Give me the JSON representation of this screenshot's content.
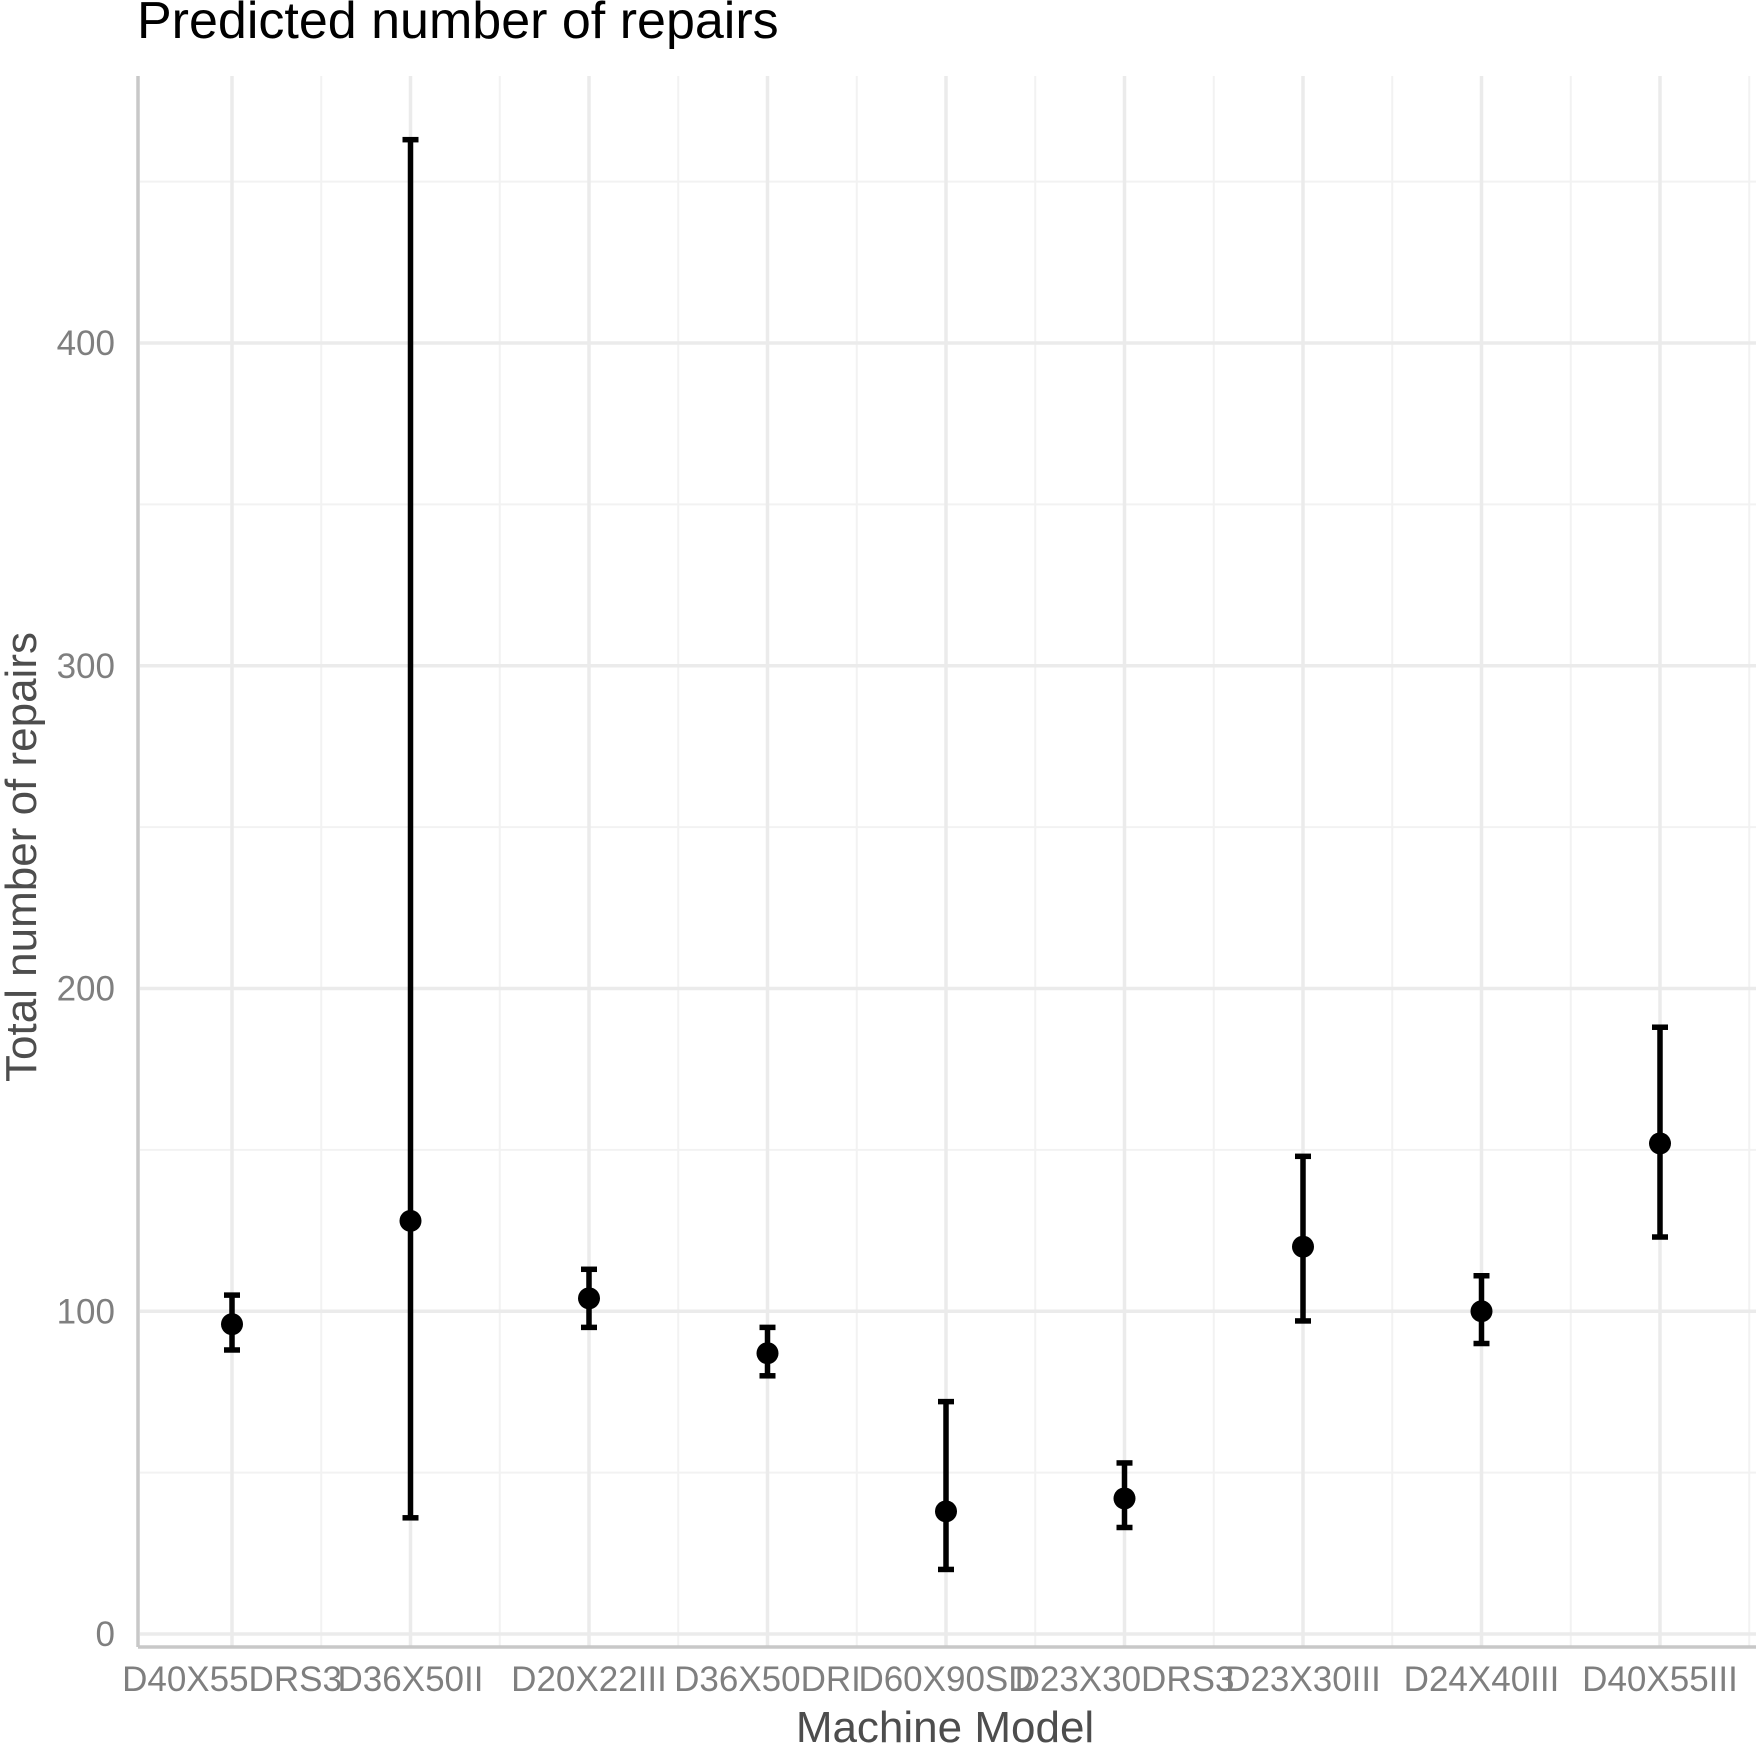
{
  "chart_data": {
    "type": "scatter",
    "title": "Predicted number of repairs",
    "xlabel": "Machine Model",
    "ylabel": "Total number of repairs",
    "categories": [
      "D40X55DRS3",
      "D36X50II",
      "D20X22III",
      "D36X50DRI",
      "D60X90SD",
      "D23X30DRS3",
      "D23X30III",
      "D24X40III",
      "D40X55III"
    ],
    "values": [
      96,
      128,
      104,
      87,
      38,
      42,
      120,
      100,
      152
    ],
    "lower": [
      88,
      36,
      95,
      80,
      20,
      33,
      97,
      90,
      123
    ],
    "upper": [
      105,
      463,
      113,
      95,
      72,
      53,
      148,
      111,
      188
    ],
    "ylim": [
      0,
      470
    ],
    "yticks": [
      0,
      100,
      200,
      300,
      400
    ],
    "y_minor_ticks": [
      50,
      150,
      250,
      350,
      450
    ],
    "grid": true,
    "colors": {
      "point": "#000000",
      "grid": "#ebebeb",
      "axis_text": "#7f7f7f",
      "axis_title": "#4d4d4d"
    }
  }
}
